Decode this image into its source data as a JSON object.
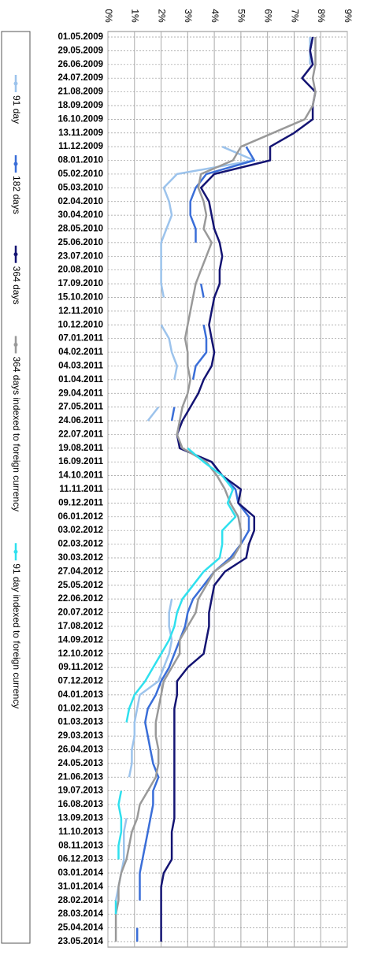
{
  "chart_data": {
    "type": "line",
    "orientation": "vertical-categories",
    "grid": true,
    "legend": "left",
    "categories": [
      "01.05.2009",
      "29.05.2009",
      "26.06.2009",
      "24.07.2009",
      "21.08.2009",
      "18.09.2009",
      "16.10.2009",
      "13.11.2009",
      "11.12.2009",
      "08.01.2010",
      "05.02.2010",
      "05.03.2010",
      "02.04.2010",
      "30.04.2010",
      "28.05.2010",
      "25.06.2010",
      "23.07.2010",
      "20.08.2010",
      "17.09.2010",
      "15.10.2010",
      "12.11.2010",
      "10.12.2010",
      "07.01.2011",
      "04.02.2011",
      "04.03.2011",
      "01.04.2011",
      "29.04.2011",
      "27.05.2011",
      "24.06.2011",
      "22.07.2011",
      "19.08.2011",
      "16.09.2011",
      "14.10.2011",
      "11.11.2011",
      "09.12.2011",
      "06.01.2012",
      "03.02.2012",
      "02.03.2012",
      "30.03.2012",
      "27.04.2012",
      "25.05.2012",
      "22.06.2012",
      "20.07.2012",
      "17.08.2012",
      "14.09.2012",
      "12.10.2012",
      "09.11.2012",
      "07.12.2012",
      "04.01.2013",
      "01.02.2013",
      "01.03.2013",
      "29.03.2013",
      "26.04.2013",
      "24.05.2013",
      "21.06.2013",
      "19.07.2013",
      "16.08.2013",
      "13.09.2013",
      "11.10.2013",
      "08.11.2013",
      "06.12.2013",
      "03.01.2014",
      "31.01.2014",
      "28.02.2014",
      "28.03.2014",
      "25.04.2014",
      "23.05.2014"
    ],
    "ylim": [
      0,
      9
    ],
    "yticks": [
      {
        "value": 0,
        "label": "0%"
      },
      {
        "value": 1,
        "label": "1%"
      },
      {
        "value": 2,
        "label": "2%"
      },
      {
        "value": 3,
        "label": "3%"
      },
      {
        "value": 4,
        "label": "4%"
      },
      {
        "value": 5,
        "label": "5%"
      },
      {
        "value": 6,
        "label": "6%"
      },
      {
        "value": 7,
        "label": "7%"
      },
      {
        "value": 8,
        "label": "8%"
      },
      {
        "value": 9,
        "label": "9%"
      }
    ],
    "series": [
      {
        "name": "91 day",
        "color": "#9cc3ec",
        "values": [
          7.6,
          7.6,
          7.6,
          null,
          null,
          null,
          null,
          null,
          4.3,
          5.5,
          2.6,
          2.1,
          2.3,
          2.4,
          2.2,
          2.0,
          2.0,
          2.0,
          2.0,
          2.1,
          null,
          2.0,
          2.3,
          2.4,
          2.6,
          2.5,
          null,
          1.9,
          1.5,
          null,
          null,
          null,
          null,
          null,
          null,
          null,
          null,
          null,
          null,
          null,
          null,
          2.4,
          2.3,
          2.3,
          2.4,
          2.3,
          2.1,
          1.9,
          1.2,
          1.1,
          1.0,
          1.0,
          0.9,
          0.9,
          0.8,
          null,
          null,
          0.7,
          0.6,
          0.6,
          0.6,
          0.5,
          0.4,
          0.3,
          0.3,
          null,
          null
        ]
      },
      {
        "name": "182 days",
        "color": "#3a6ed8",
        "values": [
          7.7,
          7.6,
          7.7,
          null,
          null,
          null,
          null,
          null,
          5.2,
          5.5,
          3.7,
          3.3,
          3.1,
          3.1,
          3.3,
          3.3,
          null,
          null,
          3.5,
          3.6,
          null,
          3.6,
          3.7,
          3.7,
          3.3,
          3.2,
          null,
          2.5,
          2.4,
          null,
          null,
          3.9,
          4.3,
          4.8,
          4.9,
          5.3,
          5.3,
          5.0,
          4.6,
          4.0,
          3.6,
          3.2,
          3.0,
          2.9,
          2.7,
          2.5,
          2.3,
          2.0,
          1.8,
          1.5,
          1.4,
          1.5,
          1.6,
          1.7,
          1.9,
          1.7,
          1.7,
          1.6,
          1.5,
          1.4,
          1.3,
          1.2,
          1.2,
          1.2,
          null,
          1.1,
          1.1
        ]
      },
      {
        "name": "364 days",
        "color": "#141473",
        "values": [
          7.7,
          7.6,
          7.7,
          7.3,
          7.8,
          7.7,
          7.7,
          7.0,
          6.1,
          6.1,
          4.0,
          3.5,
          3.8,
          3.9,
          4.0,
          4.2,
          4.3,
          4.2,
          4.2,
          4.0,
          3.9,
          3.8,
          3.9,
          4.0,
          3.9,
          3.6,
          3.4,
          3.1,
          2.8,
          2.6,
          2.7,
          3.9,
          4.3,
          5.0,
          4.9,
          5.5,
          5.5,
          5.3,
          5.2,
          4.4,
          4.0,
          3.9,
          3.8,
          3.8,
          3.7,
          3.6,
          3.0,
          2.6,
          2.6,
          2.5,
          2.5,
          2.5,
          2.5,
          2.5,
          2.5,
          2.5,
          2.5,
          2.5,
          2.4,
          2.4,
          2.4,
          2.1,
          2.0,
          2.0,
          2.0,
          2.0,
          2.0
        ]
      },
      {
        "name": "364 days indexed to foreign currency",
        "color": "#999999",
        "values": [
          7.8,
          7.8,
          7.8,
          7.7,
          7.8,
          7.7,
          7.4,
          6.2,
          5.0,
          4.7,
          3.5,
          3.4,
          3.6,
          3.7,
          3.6,
          3.9,
          3.7,
          3.5,
          3.3,
          3.2,
          3.1,
          3.0,
          2.9,
          3.0,
          3.0,
          3.1,
          3.0,
          2.8,
          2.7,
          2.6,
          2.8,
          3.7,
          4.1,
          4.4,
          4.6,
          4.9,
          5.0,
          5.0,
          4.7,
          4.0,
          3.7,
          3.4,
          3.3,
          3.0,
          2.7,
          2.7,
          2.4,
          2.1,
          2.0,
          1.9,
          1.8,
          1.8,
          1.9,
          1.9,
          1.8,
          1.5,
          1.2,
          1.1,
          0.9,
          0.8,
          0.7,
          0.5,
          0.4,
          0.4,
          0.3,
          0.3,
          0.3
        ]
      },
      {
        "name": "91 day indexed to foreign currency",
        "color": "#2fe0ee",
        "values": [
          null,
          null,
          null,
          null,
          null,
          null,
          null,
          null,
          null,
          null,
          null,
          null,
          null,
          null,
          null,
          null,
          null,
          null,
          null,
          null,
          null,
          null,
          null,
          null,
          null,
          null,
          null,
          null,
          null,
          null,
          3.0,
          3.6,
          4.3,
          4.7,
          4.5,
          4.8,
          4.3,
          4.3,
          4.2,
          3.6,
          3.2,
          2.8,
          2.6,
          2.5,
          2.3,
          2.0,
          1.7,
          1.4,
          1.0,
          0.8,
          0.7,
          null,
          null,
          null,
          null,
          0.5,
          0.4,
          0.5,
          0.5,
          0.4,
          0.4,
          null,
          null,
          0.3,
          0.3,
          null,
          null
        ]
      }
    ]
  }
}
